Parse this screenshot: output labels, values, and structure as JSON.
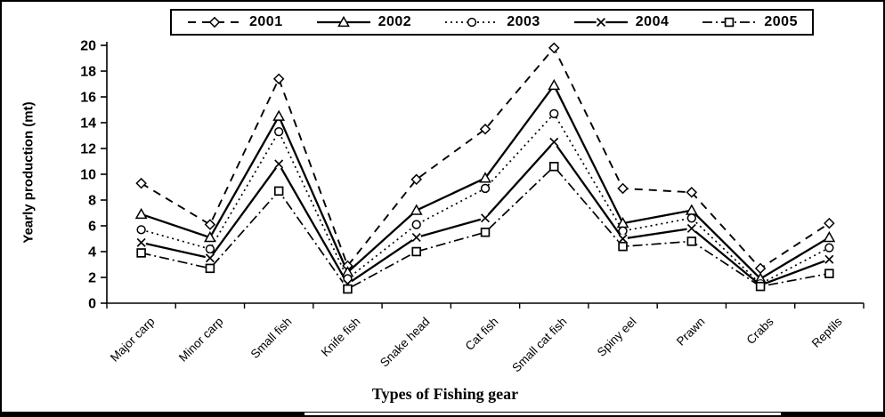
{
  "figure": {
    "background": "#ffffff",
    "line_color": "#000000",
    "marker_fill": "#ffffff"
  },
  "chart_data": {
    "type": "line",
    "title": "",
    "xlabel": "Types of Fishing gear",
    "ylabel": "Yearly production (mt)",
    "ylim": [
      0,
      20
    ],
    "yticks": [
      0,
      2,
      4,
      6,
      8,
      10,
      12,
      14,
      16,
      18,
      20
    ],
    "grid": false,
    "legend_position": "top-center",
    "categories": [
      "Major carp",
      "Minor carp",
      "Small fish",
      "Knife fish",
      "Snake head",
      "Cat fish",
      "Small cat fish",
      "Spiny eel",
      "Prawn",
      "Crabs",
      "Reptils"
    ],
    "series": [
      {
        "name": "2001",
        "marker": "diamond",
        "line_style": "dashed",
        "values": [
          9.3,
          6.1,
          17.4,
          2.9,
          9.6,
          13.5,
          19.8,
          8.9,
          8.6,
          2.7,
          6.2
        ]
      },
      {
        "name": "2002",
        "marker": "triangle",
        "line_style": "solid",
        "values": [
          6.9,
          5.1,
          14.5,
          2.4,
          7.2,
          9.7,
          16.9,
          6.2,
          7.2,
          1.9,
          5.1
        ]
      },
      {
        "name": "2003",
        "marker": "circle",
        "line_style": "dotted",
        "values": [
          5.7,
          4.2,
          13.3,
          1.9,
          6.1,
          8.9,
          14.7,
          5.6,
          6.6,
          1.5,
          4.3
        ]
      },
      {
        "name": "2004",
        "marker": "x",
        "line_style": "solid",
        "values": [
          4.7,
          3.5,
          10.8,
          1.5,
          5.1,
          6.6,
          12.5,
          5.0,
          5.8,
          1.4,
          3.4
        ]
      },
      {
        "name": "2005",
        "marker": "square",
        "line_style": "dash-dot",
        "values": [
          3.9,
          2.7,
          8.7,
          1.1,
          4.0,
          5.5,
          10.6,
          4.4,
          4.8,
          1.3,
          2.3
        ]
      }
    ]
  }
}
